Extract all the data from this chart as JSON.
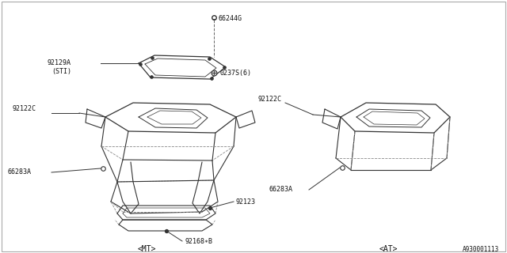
{
  "bg_color": "#ffffff",
  "line_color": "#333333",
  "text_color": "#111111",
  "diagram_id": "A930001113",
  "mt_label": "<MT>",
  "at_label": "<AT>",
  "font_size_label": 6.0,
  "font_size_id": 5.5
}
